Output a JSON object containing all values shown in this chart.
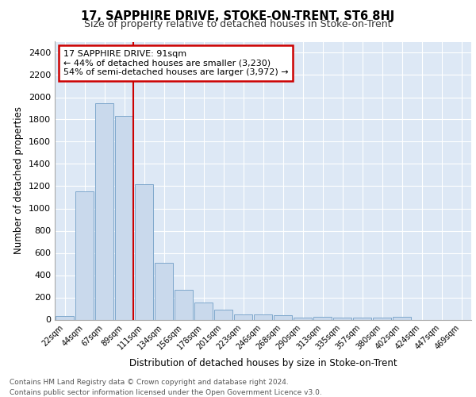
{
  "title": "17, SAPPHIRE DRIVE, STOKE-ON-TRENT, ST6 8HJ",
  "subtitle": "Size of property relative to detached houses in Stoke-on-Trent",
  "xlabel": "Distribution of detached houses by size in Stoke-on-Trent",
  "ylabel": "Number of detached properties",
  "bin_labels": [
    "22sqm",
    "44sqm",
    "67sqm",
    "89sqm",
    "111sqm",
    "134sqm",
    "156sqm",
    "178sqm",
    "201sqm",
    "223sqm",
    "246sqm",
    "268sqm",
    "290sqm",
    "313sqm",
    "335sqm",
    "357sqm",
    "380sqm",
    "402sqm",
    "424sqm",
    "447sqm",
    "469sqm"
  ],
  "bar_values": [
    30,
    1150,
    1950,
    1830,
    1220,
    510,
    270,
    155,
    90,
    50,
    45,
    40,
    20,
    25,
    20,
    20,
    20,
    25,
    0,
    0,
    0
  ],
  "bar_color": "#c9d9ec",
  "bar_edge_color": "#7fa8cc",
  "red_line_index": 3,
  "red_line_color": "#cc0000",
  "annotation_text": "17 SAPPHIRE DRIVE: 91sqm\n← 44% of detached houses are smaller (3,230)\n54% of semi-detached houses are larger (3,972) →",
  "annotation_box_color": "#ffffff",
  "annotation_box_edge": "#cc0000",
  "ylim": [
    0,
    2500
  ],
  "yticks": [
    0,
    200,
    400,
    600,
    800,
    1000,
    1200,
    1400,
    1600,
    1800,
    2000,
    2200,
    2400
  ],
  "background_color": "#dde8f5",
  "footer_text": "Contains HM Land Registry data © Crown copyright and database right 2024.\nContains public sector information licensed under the Open Government Licence v3.0.",
  "title_fontsize": 10.5,
  "subtitle_fontsize": 9
}
